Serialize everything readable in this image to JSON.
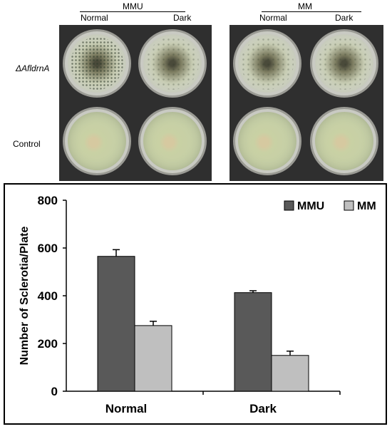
{
  "figure": {
    "row_labels": {
      "mutant": "ΔAfldrnA",
      "control": "Control"
    },
    "groups": [
      {
        "title": "MMU",
        "columns": [
          "Normal",
          "Dark"
        ]
      },
      {
        "title": "MM",
        "columns": [
          "Normal",
          "Dark"
        ]
      }
    ]
  },
  "chart_data": {
    "type": "bar",
    "categories": [
      "Normal",
      "Dark"
    ],
    "series": [
      {
        "name": "MMU",
        "values": [
          565,
          413
        ],
        "errors": [
          28,
          8
        ],
        "color": "#595959"
      },
      {
        "name": "MM",
        "values": [
          275,
          150
        ],
        "errors": [
          18,
          18
        ],
        "color": "#bfbfbf"
      }
    ],
    "title": "",
    "xlabel": "",
    "ylabel": "Number of Sclerotia/Plate",
    "ylim": [
      0,
      800
    ],
    "yticks": [
      0,
      200,
      400,
      600,
      800
    ],
    "legend_position": "top-right",
    "grid": false
  }
}
